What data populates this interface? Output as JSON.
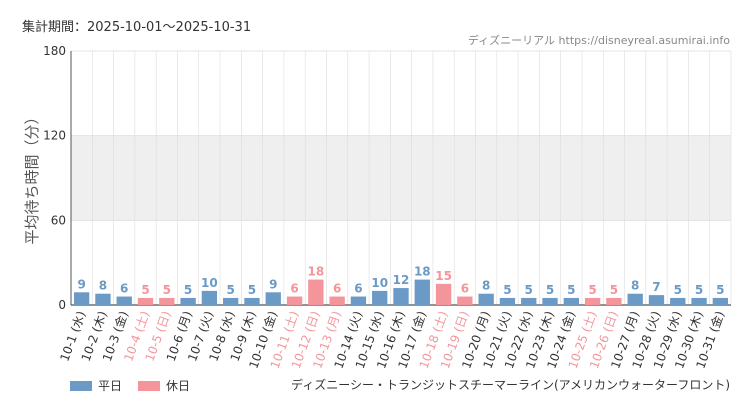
{
  "header": {
    "period": "集計期間：2025-10-01〜2025-10-31",
    "site": "ディズニーリアル https://disneyreal.asumirai.info"
  },
  "legend": {
    "weekday": "平日",
    "holiday": "休日"
  },
  "attraction": "ディズニーシー・トランジットスチーマーライン(アメリカンウォーターフロント)",
  "colors": {
    "weekday": "#6b9ac7",
    "holiday": "#f4959b",
    "band": "#efefef",
    "grid": "#dddddd"
  },
  "chart_data": {
    "type": "bar",
    "ylabel": "平均待ち時間（分）",
    "ylim": [
      0,
      180
    ],
    "yticks": [
      0,
      60,
      120,
      180
    ],
    "highlight_band": [
      60,
      120
    ],
    "categories": [
      "10-1 (水)",
      "10-2 (木)",
      "10-3 (金)",
      "10-4 (土)",
      "10-5 (日)",
      "10-6 (月)",
      "10-7 (火)",
      "10-8 (水)",
      "10-9 (木)",
      "10-10 (金)",
      "10-11 (土)",
      "10-12 (日)",
      "10-13 (月)",
      "10-14 (火)",
      "10-15 (水)",
      "10-16 (木)",
      "10-17 (金)",
      "10-18 (土)",
      "10-19 (日)",
      "10-20 (月)",
      "10-21 (火)",
      "10-22 (水)",
      "10-23 (木)",
      "10-24 (金)",
      "10-25 (土)",
      "10-26 (日)",
      "10-27 (月)",
      "10-28 (火)",
      "10-29 (水)",
      "10-30 (木)",
      "10-31 (金)"
    ],
    "values": [
      9,
      8,
      6,
      5,
      5,
      5,
      10,
      5,
      5,
      9,
      6,
      18,
      6,
      6,
      10,
      12,
      18,
      15,
      6,
      8,
      5,
      5,
      5,
      5,
      5,
      5,
      8,
      7,
      5,
      5,
      5
    ],
    "holiday": [
      false,
      false,
      false,
      true,
      true,
      false,
      false,
      false,
      false,
      false,
      true,
      true,
      true,
      false,
      false,
      false,
      false,
      true,
      true,
      false,
      false,
      false,
      false,
      false,
      true,
      true,
      false,
      false,
      false,
      false,
      false
    ]
  }
}
